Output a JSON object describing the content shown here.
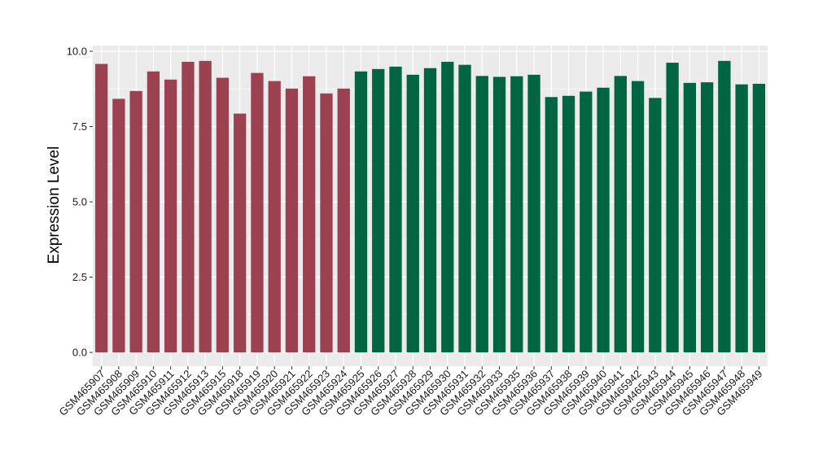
{
  "chart_data": {
    "type": "bar",
    "title": "",
    "xlabel": "",
    "ylabel": "Expression Level",
    "ylim": [
      0,
      10
    ],
    "yticks": [
      "0.0",
      "2.5",
      "5.0",
      "7.5",
      "10.0"
    ],
    "ytick_values": [
      0,
      2.5,
      5,
      7.5,
      10
    ],
    "grid": true,
    "legend": "none",
    "colors": {
      "group1": "#9B4150",
      "group2": "#006641",
      "panel": "#EBEBEB",
      "grid": "#FFFFFF"
    },
    "categories": [
      "GSM465907",
      "GSM465908",
      "GSM465909",
      "GSM465910",
      "GSM465911",
      "GSM465912",
      "GSM465913",
      "GSM465915",
      "GSM465918",
      "GSM465919",
      "GSM465920",
      "GSM465921",
      "GSM465922",
      "GSM465923",
      "GSM465924",
      "GSM465925",
      "GSM465926",
      "GSM465927",
      "GSM465928",
      "GSM465929",
      "GSM465930",
      "GSM465931",
      "GSM465932",
      "GSM465933",
      "GSM465935",
      "GSM465936",
      "GSM465937",
      "GSM465938",
      "GSM465939",
      "GSM465940",
      "GSM465941",
      "GSM465942",
      "GSM465943",
      "GSM465944",
      "GSM465945",
      "GSM465946",
      "GSM465947",
      "GSM465948",
      "GSM465949"
    ],
    "values": [
      9.58,
      8.42,
      8.68,
      9.33,
      9.06,
      9.65,
      9.68,
      9.12,
      7.93,
      9.28,
      9.01,
      8.76,
      9.17,
      8.6,
      8.76,
      9.33,
      9.41,
      9.49,
      9.22,
      9.44,
      9.65,
      9.55,
      9.18,
      9.15,
      9.17,
      9.22,
      8.48,
      8.52,
      8.66,
      8.79,
      9.18,
      9.01,
      8.45,
      9.62,
      8.95,
      8.97,
      9.68,
      8.9,
      8.92
    ],
    "group": [
      1,
      1,
      1,
      1,
      1,
      1,
      1,
      1,
      1,
      1,
      1,
      1,
      1,
      1,
      1,
      2,
      2,
      2,
      2,
      2,
      2,
      2,
      2,
      2,
      2,
      2,
      2,
      2,
      2,
      2,
      2,
      2,
      2,
      2,
      2,
      2,
      2,
      2,
      2
    ]
  }
}
